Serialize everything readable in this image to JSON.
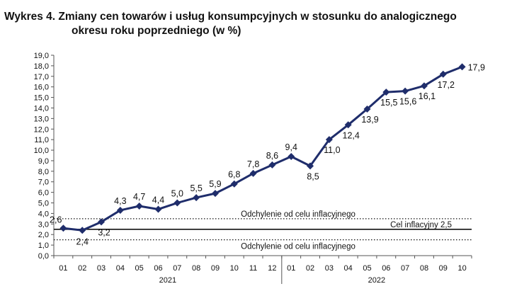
{
  "title": {
    "line1": "Wykres 4. Zmiany cen towarów i usług konsumpcyjnych w stosunku do analogicznego",
    "line2": "okresu roku poprzedniego (w %)"
  },
  "chart_data": {
    "type": "line",
    "categories": [
      "01",
      "02",
      "03",
      "04",
      "05",
      "06",
      "07",
      "08",
      "09",
      "10",
      "11",
      "12",
      "01",
      "02",
      "03",
      "04",
      "05",
      "06",
      "07",
      "08",
      "09",
      "10"
    ],
    "years": [
      {
        "label": "2021",
        "start": 0,
        "end": 11
      },
      {
        "label": "2022",
        "start": 12,
        "end": 21
      }
    ],
    "series": [
      {
        "values": [
          2.6,
          2.4,
          3.2,
          4.3,
          4.7,
          4.4,
          5.0,
          5.5,
          5.9,
          6.8,
          7.8,
          8.6,
          9.4,
          8.5,
          11.0,
          12.4,
          13.9,
          15.5,
          15.6,
          16.1,
          17.2,
          17.9
        ],
        "labels": [
          "2,6",
          "2,4",
          "3,2",
          "4,3",
          "4,7",
          "4,4",
          "5,0",
          "5,5",
          "5,9",
          "6,8",
          "7,8",
          "8,6",
          "9,4",
          "8,5",
          "11,0",
          "12,4",
          "13,9",
          "15,5",
          "15,6",
          "16,1",
          "17,2",
          "17,9"
        ],
        "color": "#1f2d6b"
      }
    ],
    "ylim": [
      0,
      19
    ],
    "yticks": [
      "0,0",
      "1,0",
      "2,0",
      "3,0",
      "4,0",
      "5,0",
      "6,0",
      "7,0",
      "8,0",
      "9,0",
      "10,0",
      "11,0",
      "12,0",
      "13,0",
      "14,0",
      "15,0",
      "16,0",
      "17,0",
      "18,0",
      "19,0"
    ],
    "reference_lines": [
      {
        "value": 3.5,
        "style": "dotted",
        "label": "Odchylenie od celu inflacyjnego"
      },
      {
        "value": 2.5,
        "style": "solid",
        "label": "Cel inflacyjny 2,5"
      },
      {
        "value": 1.5,
        "style": "dotted",
        "label": "Odchylenie od celu inflacyjnego"
      }
    ],
    "grid": false
  }
}
